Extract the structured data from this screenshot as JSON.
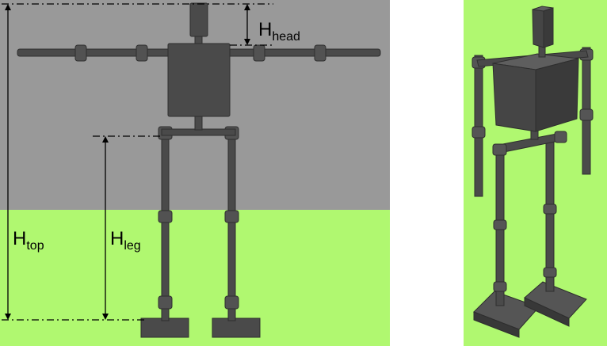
{
  "colors": {
    "sky": "#999999",
    "ground": "#b0f870",
    "robot": "#4a4a4a",
    "robot_side": "#363636",
    "robot_light": "#5e5e5e",
    "background": "#ffffff",
    "line": "#000000"
  },
  "labels": {
    "head": {
      "main": "H",
      "sub": "head"
    },
    "top": {
      "main": "H",
      "sub": "top"
    },
    "leg": {
      "main": "H",
      "sub": "leg"
    }
  }
}
